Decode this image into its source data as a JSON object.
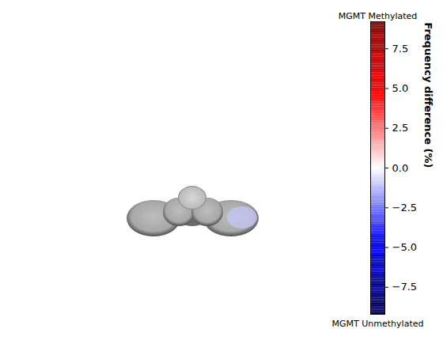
{
  "chart_data": {
    "type": "heatmap",
    "cells": [
      {
        "value": -1.0
      }
    ],
    "colorbar": {
      "range": [
        -9.2,
        9.2
      ],
      "ticks": [
        {
          "value": -7.5,
          "label": "−7.5"
        },
        {
          "value": -5,
          "label": "−5.0"
        },
        {
          "value": -2.5,
          "label": "−2.5"
        },
        {
          "value": 0,
          "label": "0.0"
        },
        {
          "value": 2.5,
          "label": "2.5"
        },
        {
          "value": 5,
          "label": "5.0"
        },
        {
          "value": 7.5,
          "label": "7.5"
        }
      ],
      "label": "Frequency difference (%)",
      "top_label": "MGMT Methylated",
      "bottom_label": "MGMT Unmethylated"
    },
    "tick_labels": "y"
  }
}
